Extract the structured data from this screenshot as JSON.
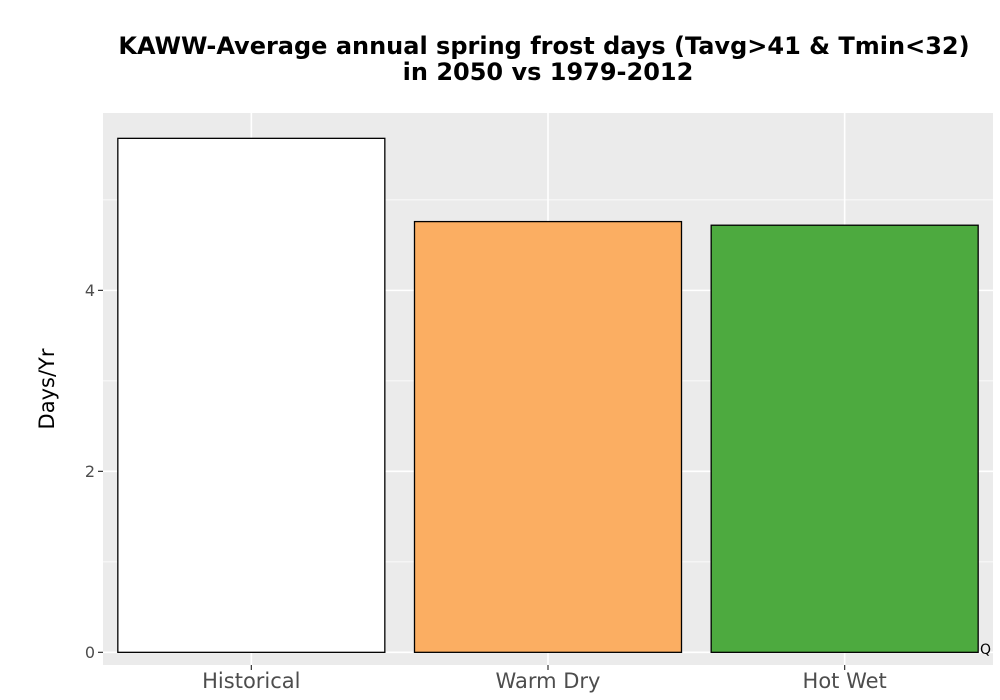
{
  "chart_data": {
    "type": "bar",
    "title_line1": "KAWW-Average annual spring frost days (Tavg>41 & Tmin<32)",
    "title_line2": "in 2050 vs 1979-2012",
    "xlabel": "",
    "ylabel": "Days/Yr",
    "categories": [
      "Historical",
      "Warm Dry",
      "Hot Wet"
    ],
    "values": [
      5.68,
      4.76,
      4.72
    ],
    "colors": [
      "#ffffff",
      "#fbae62",
      "#4daa3f"
    ],
    "ylim": [
      -0.14,
      5.96
    ],
    "yticks": [
      0,
      2,
      4
    ],
    "ytick_labels": [
      "0",
      "2",
      "4"
    ],
    "grid": true,
    "panel_background": "#ebebeb",
    "corner_note": "Q"
  }
}
